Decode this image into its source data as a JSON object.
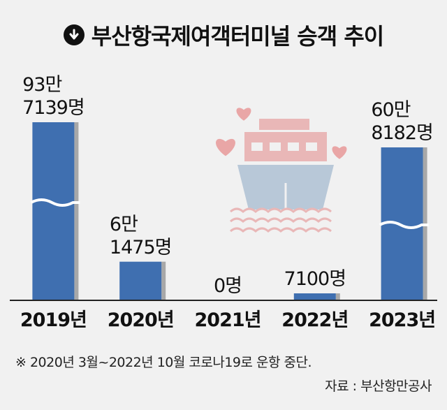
{
  "title": "부산항국제여객터미널 승객 추이",
  "icon": "circle-down-arrow-icon",
  "colors": {
    "bar": "#3f6fb0",
    "bar_shadow": "#a8a8a8",
    "background": "#f1f1f1",
    "baseline": "#222222",
    "ship_hull": "#b8c8d8",
    "ship_cabin": "#e9b7b7",
    "heart": "#e9a6a6"
  },
  "chart_data": {
    "type": "bar",
    "categories": [
      "2019년",
      "2020년",
      "2021년",
      "2022년",
      "2023년"
    ],
    "values": [
      937139,
      61475,
      0,
      7100,
      608182
    ],
    "data_labels": [
      [
        "93만",
        "7139명"
      ],
      [
        "6만",
        "1475명"
      ],
      [
        "0명"
      ],
      [
        "7100명"
      ],
      [
        "60만",
        "8182명"
      ]
    ],
    "axis_break": true,
    "grid": false,
    "legend": "none"
  },
  "footnote": "※ 2020년 3월~2022년 10월 코로나19로 운항 중단.",
  "source": "자료 : 부산항만공사"
}
